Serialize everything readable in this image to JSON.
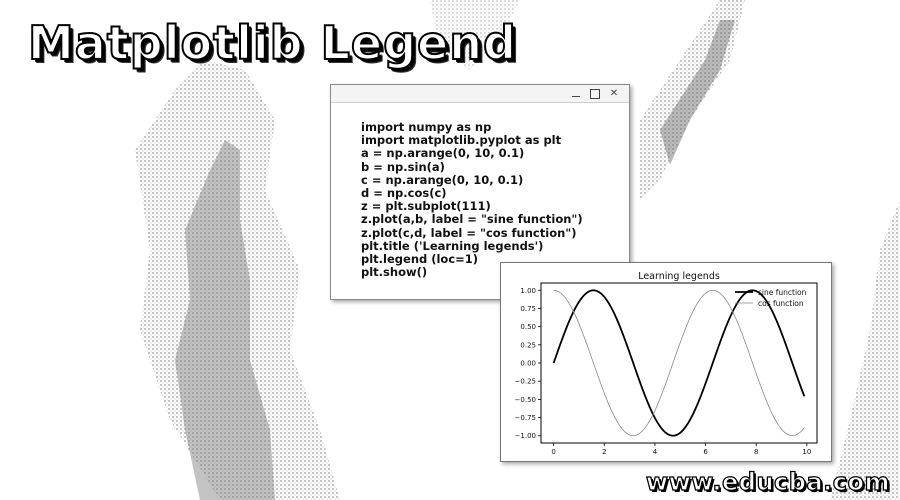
{
  "headline": "Matplotlib Legend",
  "code_window": {
    "controls": [
      "minimize-icon",
      "maximize-icon",
      "close-icon"
    ],
    "lines": [
      "import numpy as np",
      "import matplotlib.pyplot as plt",
      "a = np.arange(0, 10, 0.1)",
      "b = np.sin(a)",
      "c = np.arange(0, 10, 0.1)",
      "d = np.cos(c)",
      "z = plt.subplot(111)",
      "z.plot(a,b, label = \"sine function\")",
      "z.plot(c,d, label = \"cos function\")",
      "plt.title ('Learning legends')",
      "plt.legend (loc=1)",
      "plt.show()"
    ]
  },
  "chart_data": {
    "type": "line",
    "title": "Learning legends",
    "xlabel": "",
    "ylabel": "",
    "xlim": [
      -0.5,
      10.4
    ],
    "ylim": [
      -1.1,
      1.1
    ],
    "x_ticks": [
      0,
      2,
      4,
      6,
      8,
      10
    ],
    "x_tick_labels": [
      "0",
      "2",
      "4",
      "6",
      "8",
      "10"
    ],
    "y_ticks": [
      1.0,
      0.75,
      0.5,
      0.25,
      0.0,
      -0.25,
      -0.5,
      -0.75,
      -1.0
    ],
    "y_tick_labels": [
      "1.00",
      "0.75",
      "0.50",
      "0.25",
      "0.00",
      "−0.25",
      "−0.50",
      "−0.75",
      "−1.00"
    ],
    "grid": false,
    "legend_position": "top-right",
    "series": [
      {
        "name": "sine function",
        "function": "sin",
        "x_start": 0,
        "x_end": 9.9,
        "x_step": 0.1,
        "color": "#000000",
        "style": "solid"
      },
      {
        "name": "cos function",
        "function": "cos",
        "x_start": 0,
        "x_end": 9.9,
        "x_step": 0.1,
        "color": "#888888",
        "style": "thin"
      }
    ]
  },
  "watermark": "www.educba.com"
}
